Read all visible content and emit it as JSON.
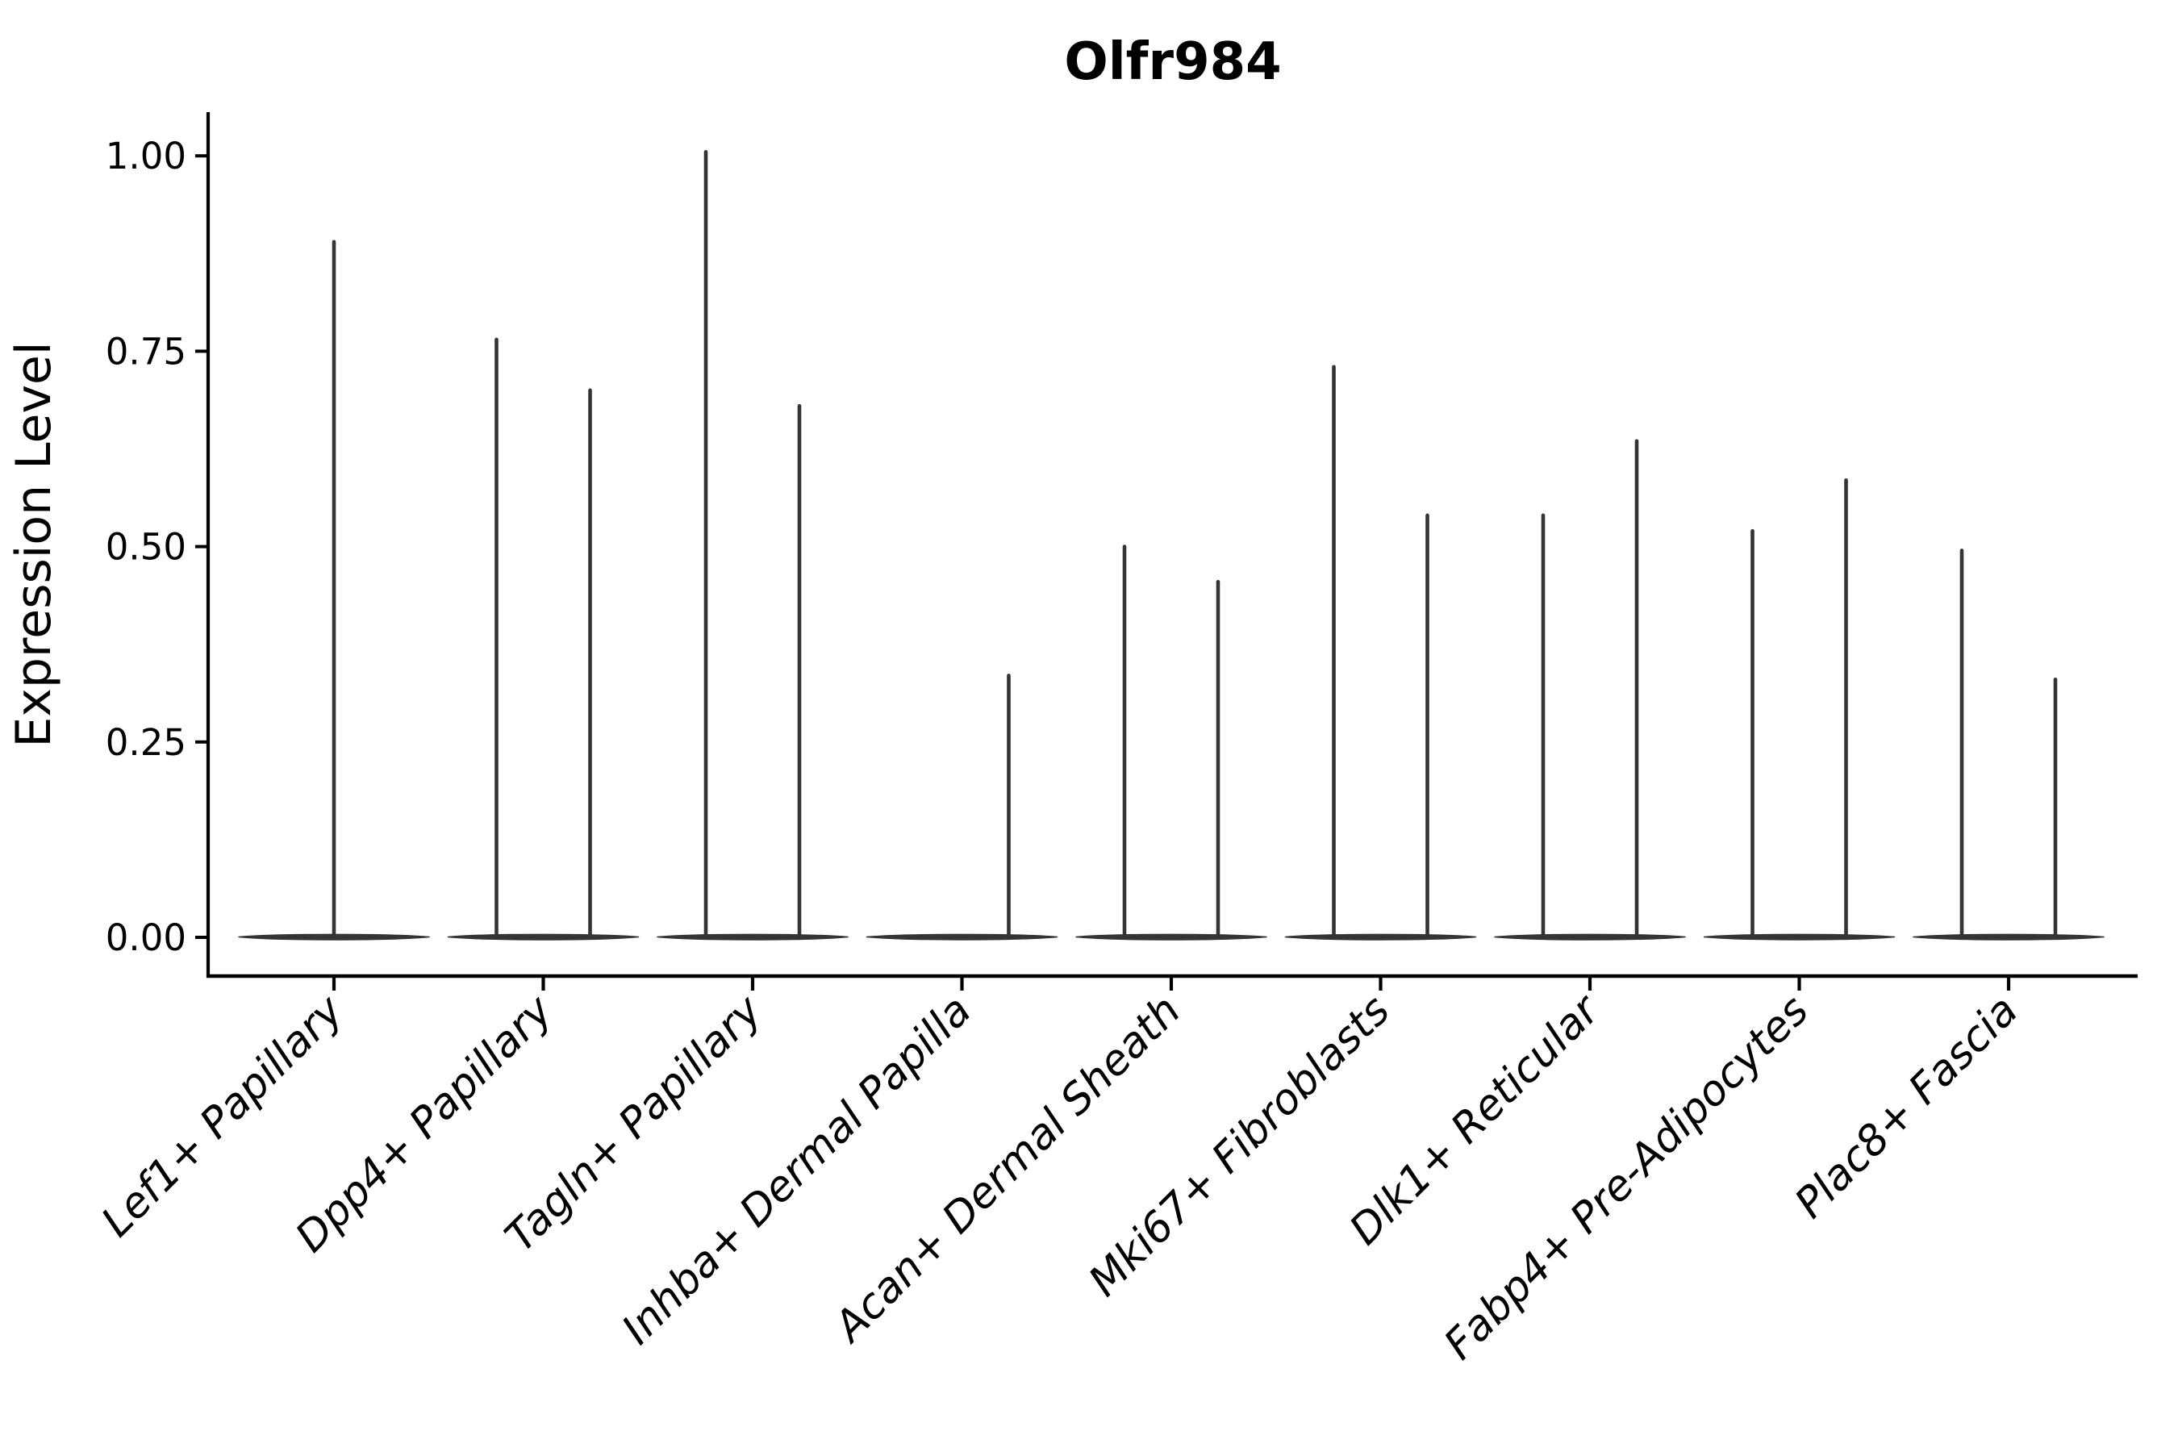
{
  "figure": {
    "title": "Olfr984"
  },
  "chart_data": {
    "type": "violin",
    "title": "Olfr984",
    "xlabel": "",
    "ylabel": "Expression Level",
    "ytick_labels": [
      "0.00",
      "0.25",
      "0.50",
      "0.75",
      "1.00"
    ],
    "yticks": [
      0.0,
      0.25,
      0.5,
      0.75,
      1.0
    ],
    "ylim": [
      -0.05,
      1.056
    ],
    "grid": false,
    "legend_position": "none",
    "categories": [
      "Lef1+ Papillary",
      "Dpp4+ Papillary",
      "Tagln+ Papillary",
      "Inhba+ Dermal Papilla",
      "Acan+ Dermal Sheath",
      "Mki67+ Fibroblasts",
      "Dlk1+ Reticular",
      "Fabp4+ Pre-Adipocytes",
      "Plac8+ Fascia"
    ],
    "violins": [
      {
        "category": "Lef1+ Papillary",
        "baseline_value": 0,
        "spikes": [
          {
            "position": "center",
            "value": 0.89
          }
        ]
      },
      {
        "category": "Dpp4+ Papillary",
        "baseline_value": 0,
        "spikes": [
          {
            "position": "left",
            "value": 0.765
          },
          {
            "position": "right",
            "value": 0.7
          }
        ]
      },
      {
        "category": "Tagln+ Papillary",
        "baseline_value": 0,
        "spikes": [
          {
            "position": "left",
            "value": 1.005
          },
          {
            "position": "right",
            "value": 0.68
          }
        ]
      },
      {
        "category": "Inhba+ Dermal Papilla",
        "baseline_value": 0,
        "spikes": [
          {
            "position": "right",
            "value": 0.335
          }
        ]
      },
      {
        "category": "Acan+ Dermal Sheath",
        "baseline_value": 0,
        "spikes": [
          {
            "position": "left",
            "value": 0.5
          },
          {
            "position": "right",
            "value": 0.455
          }
        ]
      },
      {
        "category": "Mki67+ Fibroblasts",
        "baseline_value": 0,
        "spikes": [
          {
            "position": "left",
            "value": 0.73
          },
          {
            "position": "right",
            "value": 0.54
          }
        ]
      },
      {
        "category": "Dlk1+ Reticular",
        "baseline_value": 0,
        "spikes": [
          {
            "position": "left",
            "value": 0.54
          },
          {
            "position": "right",
            "value": 0.635
          }
        ]
      },
      {
        "category": "Fabp4+ Pre-Adipocytes",
        "baseline_value": 0,
        "spikes": [
          {
            "position": "left",
            "value": 0.52
          },
          {
            "position": "right",
            "value": 0.585
          }
        ]
      },
      {
        "category": "Plac8+ Fascia",
        "baseline_value": 0,
        "spikes": [
          {
            "position": "left",
            "value": 0.495
          },
          {
            "position": "right",
            "value": 0.33
          }
        ]
      }
    ],
    "colors": {
      "violin": "#343434",
      "axis": "#000000",
      "text": "#000000",
      "background": "#ffffff"
    }
  }
}
